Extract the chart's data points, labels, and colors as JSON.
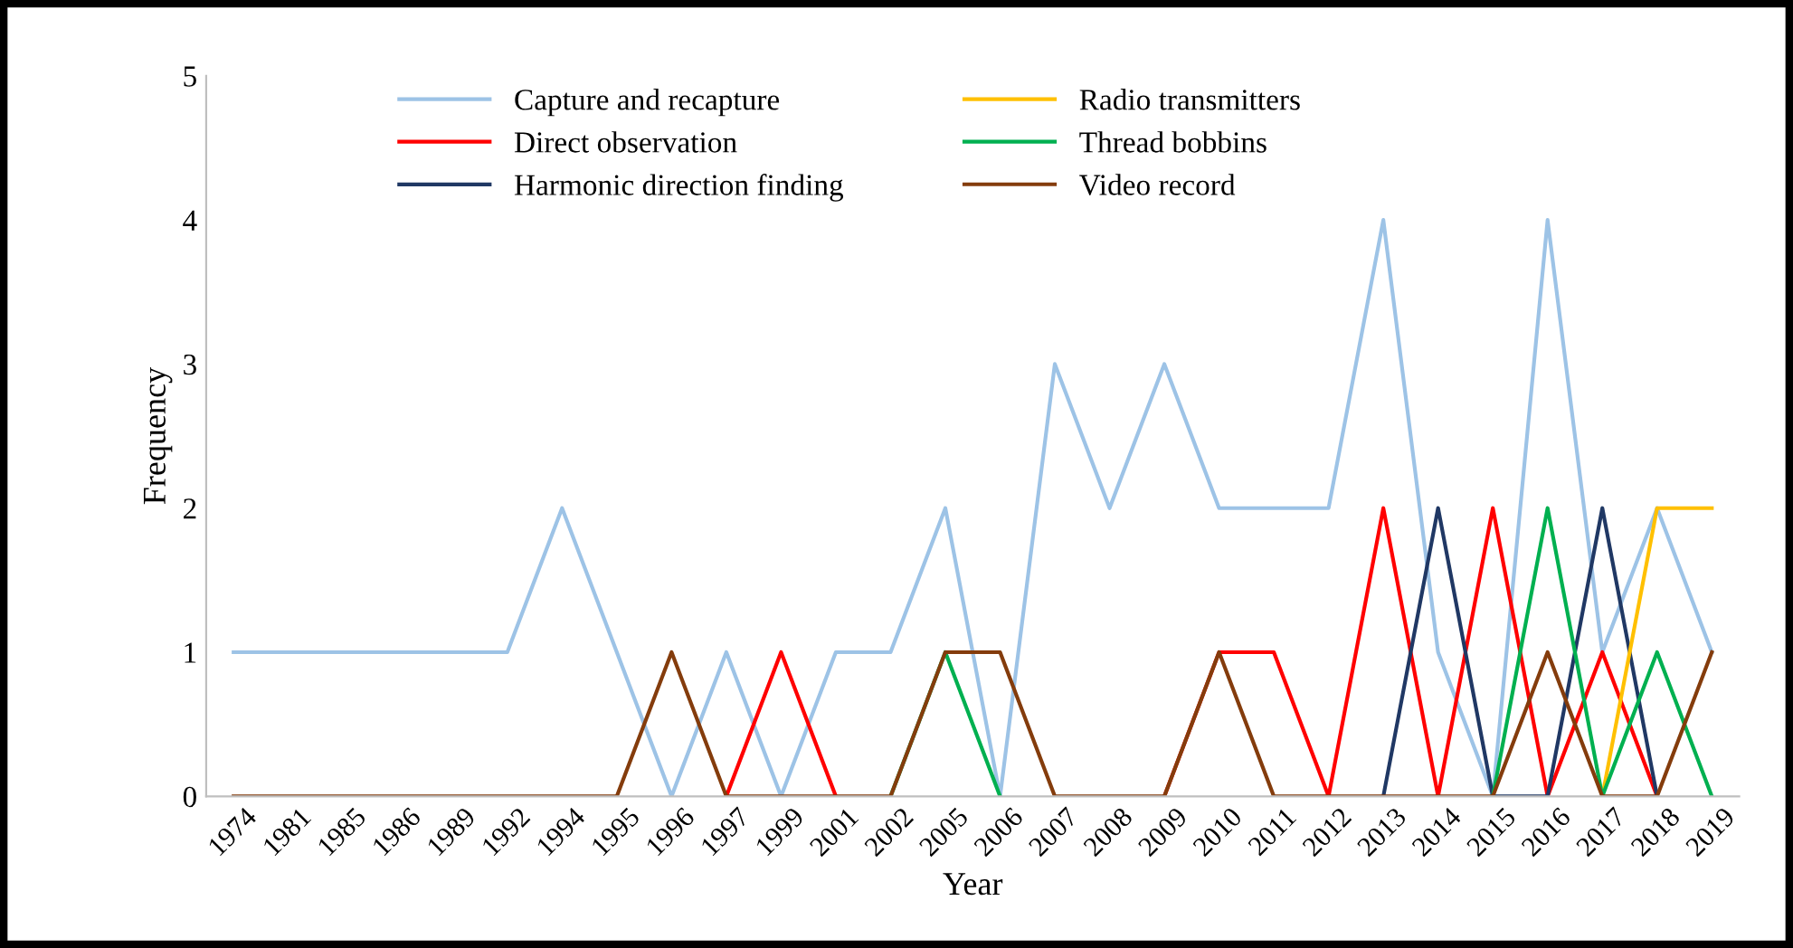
{
  "chart_data": {
    "type": "line",
    "xlabel": "Year",
    "ylabel": "Frequency",
    "categories": [
      "1974",
      "1981",
      "1985",
      "1986",
      "1989",
      "1992",
      "1994",
      "1995",
      "1996",
      "1997",
      "1999",
      "2001",
      "2002",
      "2005",
      "2006",
      "2007",
      "2008",
      "2009",
      "2010",
      "2011",
      "2012",
      "2013",
      "2014",
      "2015",
      "2016",
      "2017",
      "2018",
      "2019"
    ],
    "series": [
      {
        "name": "Capture and recapture",
        "color": "#9dc3e6",
        "values": [
          1,
          1,
          1,
          1,
          1,
          1,
          2,
          1,
          0,
          1,
          0,
          1,
          1,
          2,
          0,
          3,
          2,
          3,
          2,
          2,
          2,
          4,
          1,
          0,
          4,
          1,
          2,
          1
        ]
      },
      {
        "name": "Direct observation",
        "color": "#ff0000",
        "values": [
          null,
          null,
          null,
          null,
          null,
          null,
          null,
          null,
          null,
          0,
          1,
          0,
          null,
          null,
          null,
          null,
          null,
          0,
          1,
          1,
          0,
          2,
          0,
          2,
          0,
          1,
          0,
          null
        ]
      },
      {
        "name": "Harmonic direction finding",
        "color": "#203864",
        "values": [
          null,
          null,
          null,
          null,
          null,
          null,
          null,
          null,
          null,
          null,
          null,
          null,
          null,
          null,
          null,
          null,
          null,
          null,
          null,
          null,
          null,
          0,
          2,
          0,
          0,
          2,
          0,
          null
        ]
      },
      {
        "name": "Radio transmitters",
        "color": "#ffc000",
        "values": [
          null,
          null,
          null,
          null,
          null,
          null,
          null,
          null,
          null,
          null,
          null,
          null,
          null,
          null,
          null,
          null,
          null,
          null,
          null,
          null,
          null,
          null,
          null,
          null,
          null,
          0,
          2,
          2
        ]
      },
      {
        "name": "Thread bobbins",
        "color": "#00b050",
        "values": [
          null,
          null,
          null,
          null,
          null,
          null,
          null,
          null,
          null,
          null,
          null,
          null,
          0,
          1,
          0,
          null,
          null,
          null,
          null,
          null,
          null,
          null,
          null,
          0,
          2,
          0,
          1,
          0
        ]
      },
      {
        "name": "Video record",
        "color": "#843c0c",
        "values": [
          0,
          0,
          0,
          0,
          0,
          0,
          0,
          0,
          1,
          0,
          0,
          0,
          0,
          1,
          1,
          0,
          0,
          0,
          1,
          0,
          0,
          0,
          0,
          0,
          1,
          0,
          0,
          1
        ]
      }
    ],
    "ylim": [
      0,
      5
    ],
    "yticks": [
      0,
      1,
      2,
      3,
      4,
      5
    ],
    "grid": false,
    "legend": "top",
    "marker": "none",
    "line_style": "solid"
  }
}
